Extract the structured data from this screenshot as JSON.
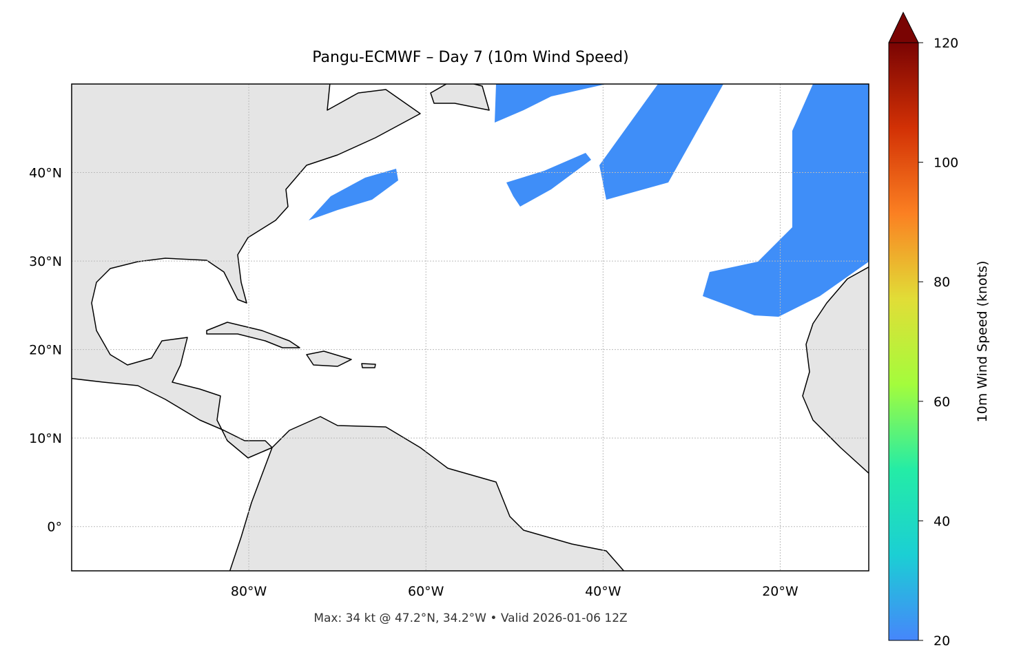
{
  "map": {
    "title": "Pangu-ECMWF – Day 7 (10m Wind Speed)",
    "footer": "Max: 34 kt @ 47.2°N, 34.2°W • Valid 2026-01-06 12Z",
    "xlim": [
      -100,
      -10
    ],
    "ylim": [
      -5,
      50
    ],
    "xticks": [
      {
        "value": -80,
        "label": "80°W"
      },
      {
        "value": -60,
        "label": "60°W"
      },
      {
        "value": -40,
        "label": "40°W"
      },
      {
        "value": -20,
        "label": "20°W"
      }
    ],
    "yticks": [
      {
        "value": 0,
        "label": "0°"
      },
      {
        "value": 10,
        "label": "10°N"
      },
      {
        "value": 20,
        "label": "20°N"
      },
      {
        "value": 30,
        "label": "30°N"
      },
      {
        "value": 40,
        "label": "40°N"
      }
    ],
    "grid": true,
    "colorbar": {
      "label": "10m Wind Speed (knots)",
      "lim": [
        20,
        120
      ],
      "ticks": [
        20,
        40,
        60,
        80,
        100,
        120
      ],
      "colors": [
        "#4686fb",
        "#1bcfd4",
        "#24eca6",
        "#a4fc3c",
        "#e1dd37",
        "#fb8022",
        "#d23105",
        "#7a0403"
      ]
    }
  }
}
